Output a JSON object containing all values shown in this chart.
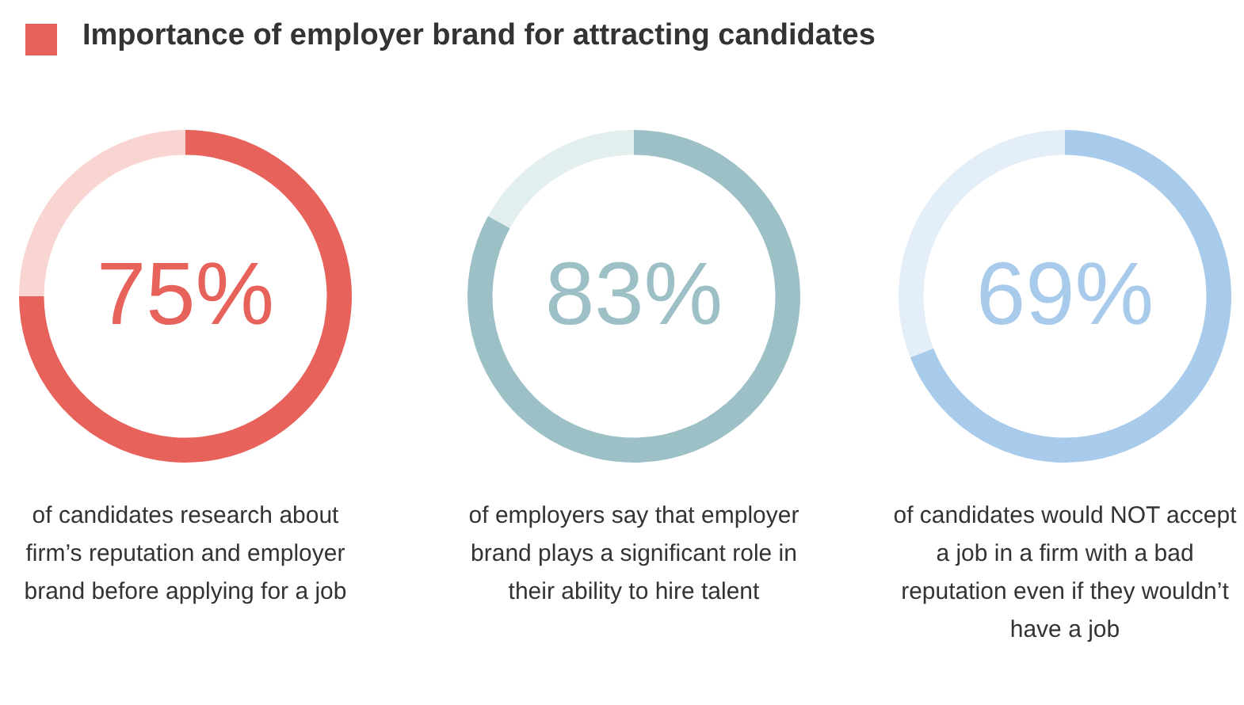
{
  "chart_data": [
    {
      "type": "donut",
      "title": "Importance of employer brand for attracting candidates",
      "categories": [
        null,
        null
      ],
      "values": [
        75,
        25
      ],
      "colors": [
        "#e8625c",
        "#f9d5d2"
      ],
      "value_labels": [
        "75%",
        null
      ],
      "annotations": [
        "of candidates research about firm’s reputation and employer brand before applying for a job"
      ]
    },
    {
      "type": "donut",
      "categories": [
        null,
        null
      ],
      "values": [
        83,
        17
      ],
      "colors": [
        "#9cc0c5",
        "#e3eeee"
      ],
      "value_labels": [
        "83%",
        null
      ],
      "annotations": [
        "of employers say that employer brand plays a significant role in their ability to hire talent"
      ]
    },
    {
      "type": "donut",
      "categories": [
        null,
        null
      ],
      "values": [
        69,
        31
      ],
      "colors": [
        "#a8cbec",
        "#e4eef9"
      ],
      "value_labels": [
        "69%",
        null
      ],
      "annotations": [
        "of candidates would NOT accept a job in a firm with a bad reputation even if they wouldn’t have a job"
      ]
    }
  ]
}
